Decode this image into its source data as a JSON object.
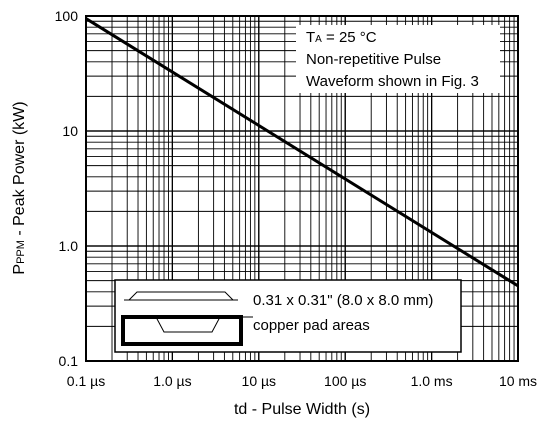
{
  "chart_data": {
    "type": "line",
    "title": "",
    "xlabel": "td - Pulse Width (s)",
    "ylabel_main": "P",
    "ylabel_sub": "PPM",
    "ylabel_rest": " - Peak Power (kW)",
    "x_scale": "log",
    "y_scale": "log",
    "xlim": [
      "0.1 µs",
      "10 ms"
    ],
    "ylim": [
      0.1,
      100
    ],
    "grid": true,
    "x_ticks": [
      {
        "value_s": 1e-07,
        "label": "0.1 µs"
      },
      {
        "value_s": 1e-06,
        "label": "1.0 µs"
      },
      {
        "value_s": 1e-05,
        "label": "10 µs"
      },
      {
        "value_s": 0.0001,
        "label": "100 µs"
      },
      {
        "value_s": 0.001,
        "label": "1.0 ms"
      },
      {
        "value_s": 0.01,
        "label": "10 ms"
      }
    ],
    "y_ticks": [
      {
        "value": 0.1,
        "label": "0.1"
      },
      {
        "value": 1,
        "label": "1.0"
      },
      {
        "value": 10,
        "label": "10"
      },
      {
        "value": 100,
        "label": "100"
      }
    ],
    "series": [
      {
        "points": [
          {
            "x_s": 1e-07,
            "y": 95
          },
          {
            "x_s": 0.01,
            "y": 0.45
          }
        ]
      }
    ],
    "annotations": {
      "condition_t": "T",
      "condition_sub": "A",
      "condition_rest": " = 25 °C",
      "line2": "Non-repetitive Pulse",
      "line3": "Waveform shown in Fig. 3",
      "pad_line1": "0.31 x 0.31\" (8.0 x 8.0 mm)",
      "pad_line2": "copper pad areas"
    }
  }
}
